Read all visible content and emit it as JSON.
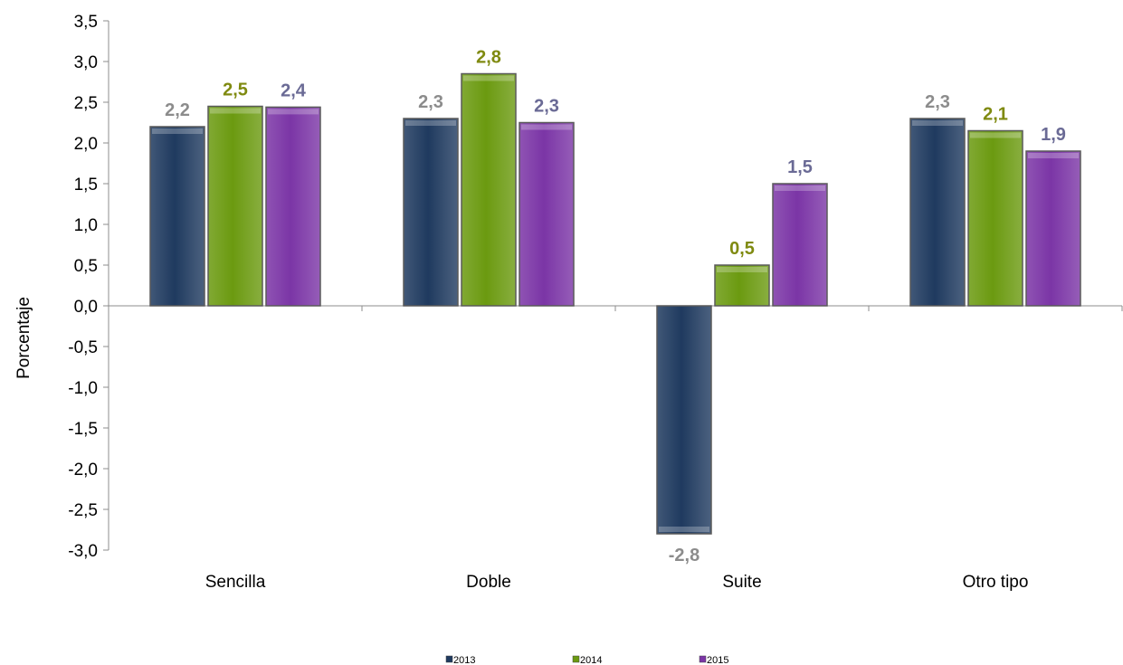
{
  "chart_data": {
    "type": "bar",
    "categories": [
      "Sencilla",
      "Doble",
      "Suite",
      "Otro tipo"
    ],
    "series": [
      {
        "name": "2013",
        "values": [
          2.2,
          2.3,
          -2.8,
          2.3
        ],
        "labels": [
          "2,2",
          "2,3",
          "-2,8",
          "2,3"
        ],
        "color": "#1f3a5f",
        "label_color": "#8c8c8c"
      },
      {
        "name": "2014",
        "values": [
          2.45,
          2.85,
          0.5,
          2.15
        ],
        "labels": [
          "2,5",
          "2,8",
          "0,5",
          "2,1"
        ],
        "color": "#6b9a10",
        "label_color": "#7f8a10"
      },
      {
        "name": "2015",
        "values": [
          2.44,
          2.25,
          1.5,
          1.9
        ],
        "labels": [
          "2,4",
          "2,3",
          "1,5",
          "1,9"
        ],
        "color": "#7b35a6",
        "label_color": "#6a6a95"
      }
    ],
    "ylabel": "Porcentaje",
    "ylim": [
      -3.0,
      3.5
    ],
    "yticks": [
      3.5,
      3.0,
      2.5,
      2.0,
      1.5,
      1.0,
      0.5,
      0.0,
      -0.5,
      -1.0,
      -1.5,
      -2.0,
      -2.5,
      -3.0
    ],
    "ytick_labels": [
      "3,5",
      "3,0",
      "2,5",
      "2,0",
      "1,5",
      "1,0",
      "0,5",
      "0,0",
      "-0,5",
      "-1,0",
      "-1,5",
      "-2,0",
      "-2,5",
      "-3,0"
    ],
    "legend_position": "bottom",
    "grid": false
  }
}
